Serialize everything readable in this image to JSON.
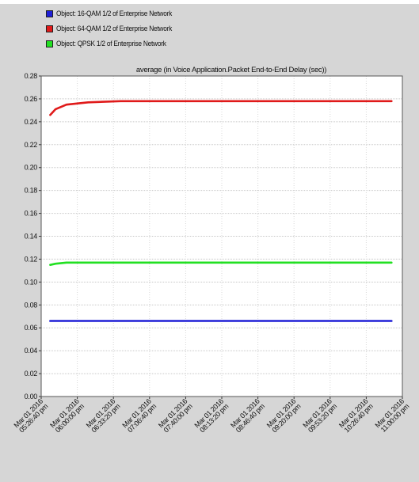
{
  "legend": [
    {
      "label": "Object: 16-QAM 1/2 of Enterprise Network",
      "color": "#1f1fd6"
    },
    {
      "label": "Object: 64-QAM 1/2 of Enterprise Network",
      "color": "#e01a1a"
    },
    {
      "label": "Object: QPSK 1/2 of Enterprise Network",
      "color": "#22e022"
    }
  ],
  "chart_data": {
    "type": "line",
    "title": "average (in Voice Application.Packet End-to-End Delay (sec))",
    "xlabel": "",
    "ylabel": "",
    "ylim": [
      0,
      0.28
    ],
    "y_ticks": [
      "0.00",
      "0.02",
      "0.04",
      "0.06",
      "0.08",
      "0.10",
      "0.12",
      "0.14",
      "0.16",
      "0.18",
      "0.20",
      "0.22",
      "0.24",
      "0.26",
      "0.28"
    ],
    "x_ticks": [
      [
        "Mar 01 2016",
        "05:26:40 pm"
      ],
      [
        "Mar 01 2016",
        "06:00:00 pm"
      ],
      [
        "Mar 01 2016",
        "06:33:20 pm"
      ],
      [
        "Mar 01 2016",
        "07:06:40 pm"
      ],
      [
        "Mar 01 2016",
        "07:40:00 pm"
      ],
      [
        "Mar 01 2016",
        "08:13:20 pm"
      ],
      [
        "Mar 01 2016",
        "08:46:40 pm"
      ],
      [
        "Mar 01 2016",
        "09:20:00 pm"
      ],
      [
        "Mar 01 2016",
        "09:53:20 pm"
      ],
      [
        "Mar 01 2016",
        "10:26:40 pm"
      ],
      [
        "Mar 01 2016",
        "11:00:00 pm"
      ]
    ],
    "x": [
      "Mar 01 2016 05:35 pm",
      "Mar 01 2016 05:40 pm",
      "Mar 01 2016 05:50 pm",
      "Mar 01 2016 06:10 pm",
      "Mar 01 2016 06:40 pm",
      "Mar 01 2016 07:30 pm",
      "Mar 01 2016 08:30 pm",
      "Mar 01 2016 09:30 pm",
      "Mar 01 2016 10:50 pm"
    ],
    "series": [
      {
        "name": "Object: 16-QAM 1/2 of Enterprise Network",
        "color": "#1f1fd6",
        "values": [
          0.066,
          0.066,
          0.066,
          0.066,
          0.066,
          0.066,
          0.066,
          0.066,
          0.066
        ]
      },
      {
        "name": "Object: 64-QAM 1/2 of Enterprise Network",
        "color": "#e01a1a",
        "values": [
          0.246,
          0.251,
          0.255,
          0.257,
          0.258,
          0.258,
          0.258,
          0.258,
          0.258
        ]
      },
      {
        "name": "Object: QPSK 1/2 of Enterprise Network",
        "color": "#22e022",
        "values": [
          0.115,
          0.116,
          0.117,
          0.117,
          0.117,
          0.117,
          0.117,
          0.117,
          0.117
        ]
      }
    ],
    "grid": true,
    "legend_position": "top-left"
  }
}
